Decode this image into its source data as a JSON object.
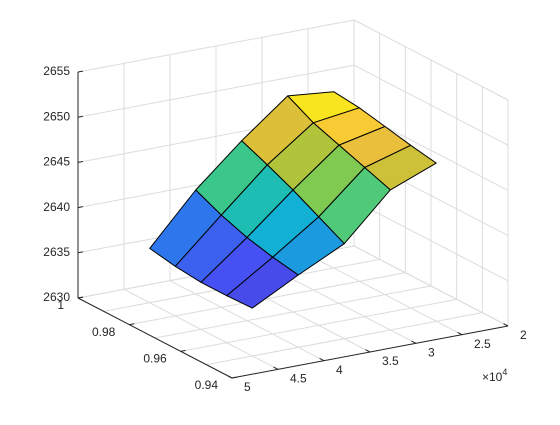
{
  "chart_data": {
    "type": "surface",
    "title": "",
    "xlabel": "",
    "ylabel": "",
    "zlabel": "",
    "colormap": "parula",
    "grid": true,
    "x_axis": {
      "values": [
        20000,
        25000,
        30000,
        35000,
        40000,
        45000,
        50000
      ],
      "tick_values": [
        2,
        2.5,
        3,
        3.5,
        4,
        4.5,
        5
      ],
      "tick_labels": [
        "2",
        "2.5",
        "3",
        "3.5",
        "4",
        "4.5",
        "5"
      ],
      "exponent_label": "×10",
      "exponent_power": "4",
      "lim": [
        20000,
        50000
      ]
    },
    "y_axis": {
      "values": [
        0.94,
        0.95,
        0.96,
        0.97,
        0.98,
        0.99,
        1.0
      ],
      "tick_values": [
        0.94,
        0.96,
        0.98,
        1.0
      ],
      "tick_labels": [
        "0.94",
        "0.96",
        "0.98",
        "1"
      ],
      "lim": [
        0.94,
        1.0
      ]
    },
    "z_axis": {
      "tick_values": [
        2630,
        2635,
        2640,
        2645,
        2650,
        2655
      ],
      "tick_labels": [
        "2630",
        "2635",
        "2640",
        "2645",
        "2650",
        "2655"
      ],
      "lim": [
        2630,
        2655
      ]
    },
    "surface": {
      "x": [
        25000,
        30000,
        35000,
        40000,
        45000
      ],
      "y": [
        0.95,
        0.96,
        0.97,
        0.98,
        0.99
      ],
      "z": [
        [
          2647.5,
          2645.5,
          2640.5,
          2638.0,
          2635.3
        ],
        [
          2648.0,
          2646.5,
          2642.0,
          2638.5,
          2635.2
        ],
        [
          2648.6,
          2647.5,
          2643.5,
          2639.2,
          2635.2
        ],
        [
          2649.2,
          2648.5,
          2644.8,
          2640.2,
          2635.5
        ],
        [
          2649.5,
          2650.0,
          2646.0,
          2641.5,
          2636.0
        ]
      ]
    }
  }
}
